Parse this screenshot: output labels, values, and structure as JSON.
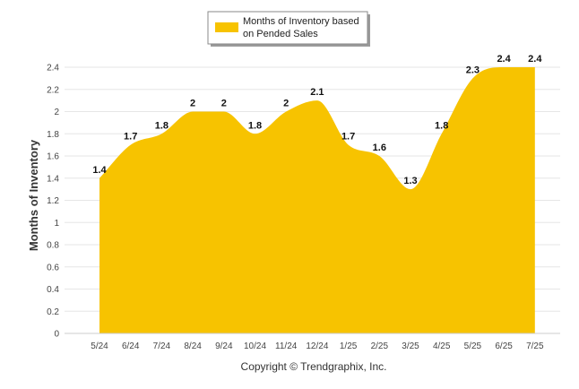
{
  "legend": {
    "line1": "Months of Inventory based",
    "line2": "on Pended Sales"
  },
  "footer": {
    "copyright": "Copyright © Trendgraphix, Inc."
  },
  "colors": {
    "area": "#f7c300",
    "grid": "#e6e6e6",
    "axis": "#cccccc"
  },
  "chart_data": {
    "type": "area",
    "categories": [
      "5/24",
      "6/24",
      "7/24",
      "8/24",
      "9/24",
      "10/24",
      "11/24",
      "12/24",
      "1/25",
      "2/25",
      "3/25",
      "4/25",
      "5/25",
      "6/25",
      "7/25"
    ],
    "series": [
      {
        "name": "Months of Inventory based on Pended Sales",
        "values": [
          1.4,
          1.7,
          1.8,
          2,
          2,
          1.8,
          2,
          2.1,
          1.7,
          1.6,
          1.3,
          1.8,
          2.3,
          2.4,
          2.4
        ],
        "labels": [
          "1.4",
          "1.7",
          "1.8",
          "2",
          "2",
          "1.8",
          "2",
          "2.1",
          "1.7",
          "1.6",
          "1.3",
          "1.8",
          "2.3",
          "2.4",
          "2.4"
        ]
      }
    ],
    "title": "",
    "xlabel": "",
    "ylabel": "Months of Inventory",
    "ylim": [
      0,
      2.4
    ],
    "yticks": [
      "0",
      "0.2",
      "0.4",
      "0.6",
      "0.8",
      "1",
      "1.2",
      "1.4",
      "1.6",
      "1.8",
      "2",
      "2.2",
      "2.4"
    ],
    "ytick_values": [
      0,
      0.2,
      0.4,
      0.6,
      0.8,
      1,
      1.2,
      1.4,
      1.6,
      1.8,
      2,
      2.2,
      2.4
    ],
    "grid": true,
    "legend_position": "top-center"
  }
}
